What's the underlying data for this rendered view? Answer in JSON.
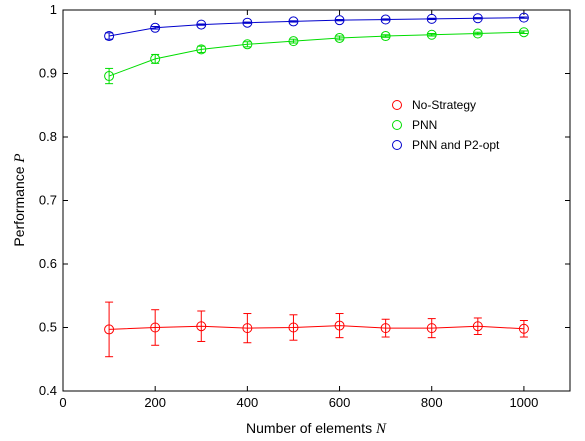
{
  "chart_data": {
    "type": "line",
    "xlabel": "Number of elements",
    "xlabel_var": "N",
    "ylabel": "Performance",
    "ylabel_var": "P",
    "xlim": [
      0,
      1100
    ],
    "ylim": [
      0.4,
      1.0
    ],
    "xticks": [
      0,
      200,
      400,
      600,
      800,
      1000
    ],
    "xtick_labels": [
      "0",
      "200",
      "400",
      "600",
      "800",
      "1000"
    ],
    "yticks": [
      0.4,
      0.5,
      0.6,
      0.7,
      0.8,
      0.9,
      1.0
    ],
    "ytick_labels": [
      "0.4",
      "0.5",
      "0.6",
      "0.7",
      "0.8",
      "0.9",
      "1"
    ],
    "grid": false,
    "legend_position": "upper-right",
    "x": [
      100,
      200,
      300,
      400,
      500,
      600,
      700,
      800,
      900,
      1000
    ],
    "series": [
      {
        "name": "No-Strategy",
        "color": "#ff0000",
        "values": [
          0.497,
          0.5,
          0.502,
          0.499,
          0.5,
          0.503,
          0.499,
          0.499,
          0.502,
          0.498
        ],
        "errors": [
          0.043,
          0.028,
          0.024,
          0.023,
          0.02,
          0.019,
          0.014,
          0.015,
          0.013,
          0.013
        ]
      },
      {
        "name": "PNN",
        "color": "#00dd00",
        "values": [
          0.896,
          0.923,
          0.938,
          0.946,
          0.951,
          0.956,
          0.959,
          0.961,
          0.963,
          0.965
        ],
        "errors": [
          0.012,
          0.007,
          0.005,
          0.004,
          0.003,
          0.003,
          0.002,
          0.002,
          0.002,
          0.002
        ]
      },
      {
        "name": "PNN and P2-opt",
        "color": "#0000cc",
        "values": [
          0.959,
          0.972,
          0.977,
          0.98,
          0.982,
          0.984,
          0.985,
          0.986,
          0.987,
          0.988
        ],
        "errors": [
          0.005,
          0.002,
          0.001,
          0.001,
          0.001,
          0.001,
          0.001,
          0.001,
          0.001,
          0.001
        ]
      }
    ]
  }
}
